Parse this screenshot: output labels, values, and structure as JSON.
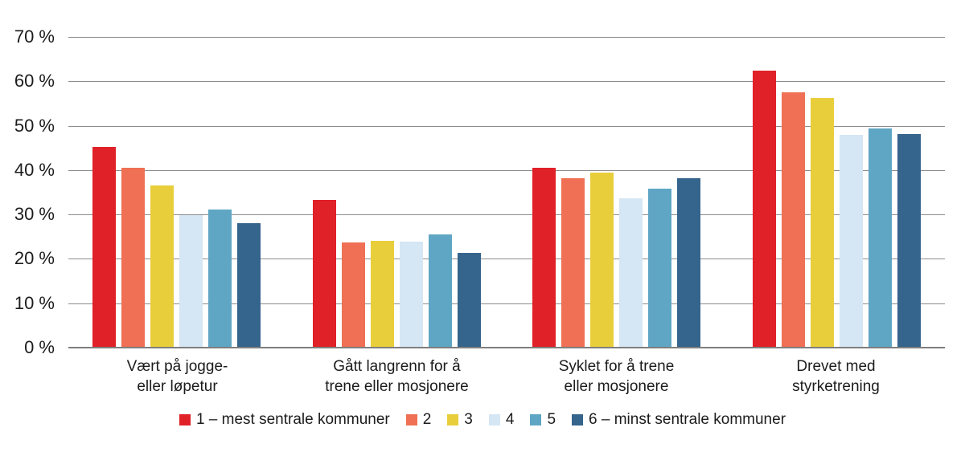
{
  "chart_data": {
    "type": "bar",
    "title": "",
    "categories": [
      "Vært på jogge-\neller løpetur",
      "Gått langrenn for å\ntrene eller mosjonere",
      "Syklet for å trene\neller mosjonere",
      "Drevet med\nstyrketrening"
    ],
    "series": [
      {
        "name": "1 – mest sentrale kommuner",
        "color": "#e02128",
        "values": [
          45.3,
          33.2,
          40.6,
          62.4
        ]
      },
      {
        "name": "2",
        "color": "#ef7054",
        "values": [
          40.5,
          23.7,
          38.1,
          57.6
        ]
      },
      {
        "name": "3",
        "color": "#e9ce3b",
        "values": [
          36.6,
          24.1,
          39.4,
          56.2
        ]
      },
      {
        "name": "4",
        "color": "#d5e6f4",
        "values": [
          29.9,
          23.9,
          33.6,
          47.9
        ]
      },
      {
        "name": "5",
        "color": "#5fa6c4",
        "values": [
          31.2,
          25.5,
          35.9,
          49.3
        ]
      },
      {
        "name": "6 – minst sentrale kommuner",
        "color": "#35648c",
        "values": [
          28.1,
          21.3,
          38.2,
          48.2
        ]
      }
    ],
    "ylim": [
      0,
      70
    ],
    "ytick_step": 10,
    "ytick_labels": [
      "0 %",
      "10 %",
      "20 %",
      "30 %",
      "40 %",
      "50 %",
      "60 %",
      "70 %"
    ],
    "grid": true,
    "legend_position": "bottom",
    "xlabel": "",
    "ylabel": ""
  },
  "style": {
    "gridline_color": "#8c8c8c",
    "axis_line_color": "#7f7f7f",
    "text_color": "#1c1c1c",
    "background": "#ffffff"
  }
}
